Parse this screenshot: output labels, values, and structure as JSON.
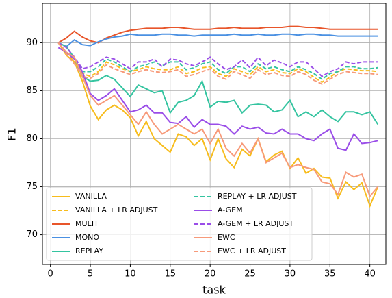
{
  "chart_data": {
    "type": "line",
    "xlabel": "task",
    "ylabel": "F1",
    "x": [
      1,
      2,
      3,
      4,
      5,
      6,
      7,
      8,
      9,
      10,
      11,
      12,
      13,
      14,
      15,
      16,
      17,
      18,
      19,
      20,
      21,
      22,
      23,
      24,
      25,
      26,
      27,
      28,
      29,
      30,
      31,
      32,
      33,
      34,
      35,
      36,
      37,
      38,
      39,
      40,
      41
    ],
    "xlim": [
      -1,
      42
    ],
    "ylim": [
      66.9,
      94.1
    ],
    "xticks": [
      0,
      5,
      10,
      15,
      20,
      25,
      30,
      35,
      40
    ],
    "yticks": [
      70,
      75,
      80,
      85,
      90
    ],
    "grid": true,
    "legend": "lower left",
    "legend_columns": 2,
    "series": [
      {
        "name": "VANILLA",
        "color": "#f7bc1c",
        "linestyle": "solid",
        "values": [
          90,
          88.7,
          88,
          86,
          83.4,
          82,
          83,
          83.5,
          83,
          82.2,
          80.3,
          81.8,
          80,
          79.3,
          78.6,
          80.5,
          80.2,
          79.3,
          80,
          77.8,
          80,
          77.9,
          77,
          78.9,
          78.2,
          80,
          77.6,
          78.3,
          78.7,
          76.9,
          78,
          76.4,
          76.9,
          76,
          75.9,
          73.8,
          75.5,
          74.7,
          75.4,
          73,
          75
        ]
      },
      {
        "name": "VANILLA + LR ADJUST",
        "color": "#f7bc1c",
        "linestyle": "dashed",
        "values": [
          90,
          89,
          88,
          86.8,
          86.5,
          87,
          88,
          87.7,
          87.3,
          87,
          87.2,
          87.5,
          87.3,
          87.2,
          87.2,
          87.5,
          86.8,
          87,
          87.4,
          87.5,
          86.8,
          86.5,
          87.3,
          87,
          86.7,
          87.5,
          87,
          87.2,
          86.9,
          86.8,
          87.3,
          87,
          86.4,
          85.9,
          86.4,
          87,
          87.3,
          87.2,
          87.1,
          87.1,
          87
        ]
      },
      {
        "name": "MULTI",
        "color": "#e8552a",
        "linestyle": "solid",
        "values": [
          90,
          90.5,
          91.2,
          90.6,
          90.2,
          90,
          90.5,
          90.8,
          91.1,
          91.3,
          91.4,
          91.5,
          91.5,
          91.5,
          91.6,
          91.6,
          91.5,
          91.4,
          91.4,
          91.4,
          91.5,
          91.5,
          91.6,
          91.5,
          91.5,
          91.5,
          91.6,
          91.6,
          91.6,
          91.7,
          91.7,
          91.6,
          91.6,
          91.5,
          91.4,
          91.4,
          91.4,
          91.4,
          91.4,
          91.4,
          91.4
        ]
      },
      {
        "name": "MONO",
        "color": "#4a90e2",
        "linestyle": "solid",
        "values": [
          90,
          89.6,
          90.3,
          89.8,
          89.7,
          90.1,
          90.4,
          90.6,
          90.7,
          90.9,
          90.8,
          90.8,
          90.8,
          90.9,
          90.9,
          90.8,
          90.8,
          90.7,
          90.8,
          90.8,
          90.8,
          90.8,
          90.9,
          90.8,
          90.8,
          90.9,
          90.8,
          90.8,
          90.9,
          90.9,
          90.8,
          90.9,
          90.9,
          90.8,
          90.8,
          90.7,
          90.7,
          90.7,
          90.7,
          90.7,
          90.7
        ]
      },
      {
        "name": "REPLAY",
        "color": "#34c4a0",
        "linestyle": "solid",
        "values": [
          90,
          89.6,
          88.4,
          86.5,
          86,
          86.1,
          86.6,
          86.2,
          85.3,
          84.4,
          85.6,
          85.2,
          84.8,
          85,
          82.7,
          83.8,
          84,
          84.5,
          86,
          83.3,
          83.9,
          83.8,
          84,
          82.7,
          83.5,
          83.6,
          83.5,
          82.8,
          83,
          84,
          82.3,
          82.8,
          82.3,
          83,
          82.3,
          81.8,
          82.8,
          82.8,
          82.5,
          82.8,
          81.5
        ]
      },
      {
        "name": "REPLAY + LR ADJUST",
        "color": "#34c4a0",
        "linestyle": "dashed",
        "values": [
          90,
          89,
          88.5,
          87,
          87,
          87.5,
          88.3,
          88,
          87.5,
          87,
          87.5,
          87.7,
          88,
          87.6,
          88,
          88,
          87.2,
          87.4,
          87.8,
          88,
          87.2,
          86.8,
          87.5,
          87.5,
          87,
          87.8,
          87.3,
          87.5,
          87.2,
          87,
          87.5,
          87.2,
          86.8,
          86.2,
          86.8,
          87,
          87.5,
          87.5,
          87.3,
          87.3,
          87.4
        ]
      },
      {
        "name": "A-GEM",
        "color": "#9a4de8",
        "linestyle": "solid",
        "values": [
          89.5,
          89,
          88.3,
          87,
          84.7,
          84,
          84.5,
          85.2,
          84,
          82.8,
          83,
          83.5,
          82.7,
          82.7,
          81.7,
          81.6,
          82.3,
          81.2,
          82,
          81.5,
          81.5,
          81.3,
          80.5,
          81.3,
          81,
          81.2,
          80.6,
          80.5,
          81,
          80.5,
          80.5,
          80,
          79.8,
          80.5,
          81,
          79,
          78.8,
          80.5,
          79.5,
          79.6,
          79.8
        ]
      },
      {
        "name": "A-GEM + LR ADJUST",
        "color": "#9a4de8",
        "linestyle": "dashed",
        "values": [
          90,
          89.5,
          88.5,
          87.3,
          87.5,
          88,
          88.5,
          88.3,
          87.8,
          87.3,
          88,
          88,
          88.3,
          87.5,
          88.3,
          88.2,
          87.8,
          87.6,
          88,
          88.5,
          87.8,
          87.2,
          87.5,
          88.2,
          87.4,
          88.5,
          87.6,
          88.2,
          87.9,
          87.5,
          88,
          88,
          87.3,
          86.5,
          87,
          87.3,
          88,
          87.8,
          88,
          88,
          88
        ]
      },
      {
        "name": "EWC",
        "color": "#f79a7a",
        "linestyle": "solid",
        "values": [
          90,
          89,
          88.5,
          86.5,
          84.5,
          83.5,
          84,
          84.5,
          83.5,
          82.5,
          81.5,
          82.8,
          81.5,
          80.5,
          81,
          81.5,
          81,
          80.5,
          81,
          79.5,
          81,
          79,
          78.2,
          79.5,
          78.5,
          80,
          77.5,
          78,
          78.5,
          77,
          77.3,
          77,
          76.8,
          75.5,
          75.3,
          74.2,
          76.5,
          76,
          76.3,
          74,
          75
        ]
      },
      {
        "name": "EWC + LR ADJUST",
        "color": "#f79a7a",
        "linestyle": "dashed",
        "values": [
          90,
          88.8,
          87.8,
          86.5,
          86.3,
          86.8,
          87.7,
          87.3,
          87,
          86.7,
          87,
          87.2,
          87,
          86.9,
          87,
          87.2,
          86.5,
          86.7,
          87,
          87.3,
          86.5,
          86.2,
          87,
          86.7,
          86.3,
          87.2,
          86.7,
          86.9,
          86.6,
          86.5,
          87,
          86.7,
          86.1,
          85.7,
          86.2,
          86.7,
          87,
          86.9,
          86.8,
          86.8,
          86.7
        ]
      }
    ]
  }
}
